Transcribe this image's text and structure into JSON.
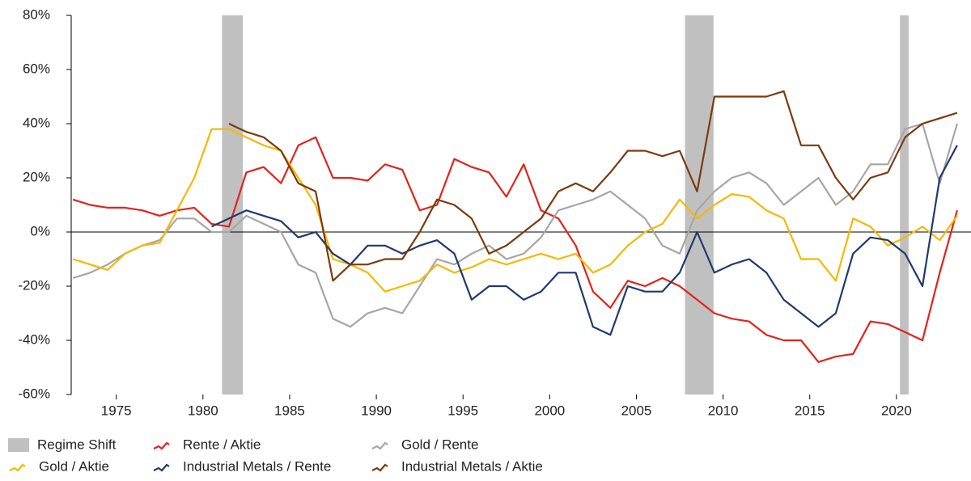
{
  "chart_data": {
    "type": "line",
    "x": [
      1972.5,
      1973.5,
      1974.5,
      1975.5,
      1976.5,
      1977.5,
      1978.5,
      1979.5,
      1980.5,
      1981.5,
      1982.5,
      1983.5,
      1984.5,
      1985.5,
      1986.5,
      1987.5,
      1988.5,
      1989.5,
      1990.5,
      1991.5,
      1992.5,
      1993.5,
      1994.5,
      1995.5,
      1996.5,
      1997.5,
      1998.5,
      1999.5,
      2000.5,
      2001.5,
      2002.5,
      2003.5,
      2004.5,
      2005.5,
      2006.5,
      2007.5,
      2008.5,
      2009.5,
      2010.5,
      2011.5,
      2012.5,
      2013.5,
      2014.5,
      2015.5,
      2016.5,
      2017.5,
      2018.5,
      2019.5,
      2020.5,
      2021.5,
      2022.5,
      2023.5
    ],
    "series": [
      {
        "name": "Rente / Aktie",
        "color": "#e2231a",
        "values": [
          12,
          10,
          9,
          9,
          8,
          6,
          8,
          9,
          3,
          2,
          22,
          24,
          18,
          32,
          35,
          20,
          20,
          19,
          25,
          23,
          8,
          10,
          27,
          24,
          22,
          13,
          25,
          8,
          5,
          -5,
          -22,
          -28,
          -18,
          -20,
          -17,
          -20,
          -25,
          -30,
          -32,
          -33,
          -38,
          -40,
          -40,
          -48,
          -46,
          -45,
          -33,
          -34,
          -37,
          -40,
          -15,
          8
        ]
      },
      {
        "name": "Gold / Rente",
        "color": "#a6a6a6",
        "values": [
          -17,
          -15,
          -12,
          -8,
          -5,
          -3,
          5,
          5,
          0,
          0,
          6,
          3,
          0,
          -12,
          -15,
          -32,
          -35,
          -30,
          -28,
          -30,
          -20,
          -10,
          -12,
          -8,
          -5,
          -10,
          -8,
          -2,
          8,
          10,
          12,
          15,
          10,
          5,
          -5,
          -8,
          8,
          15,
          20,
          22,
          18,
          10,
          15,
          20,
          10,
          15,
          25,
          25,
          38,
          40,
          18,
          40
        ]
      },
      {
        "name": "Gold / Aktie",
        "color": "#f5b800",
        "values": [
          -10,
          -12,
          -14,
          -8,
          -5,
          -4,
          8,
          20,
          38,
          38,
          35,
          32,
          30,
          20,
          10,
          -10,
          -12,
          -15,
          -22,
          -20,
          -18,
          -12,
          -15,
          -13,
          -10,
          -12,
          -10,
          -8,
          -10,
          -8,
          -15,
          -12,
          -5,
          0,
          3,
          12,
          5,
          10,
          14,
          13,
          8,
          5,
          -10,
          -10,
          -18,
          5,
          2,
          -5,
          -2,
          2,
          -3,
          6
        ]
      },
      {
        "name": "Industrial Metals / Rente",
        "color": "#1f3a6e",
        "values": [
          null,
          null,
          null,
          null,
          null,
          null,
          null,
          null,
          2,
          5,
          8,
          6,
          4,
          -2,
          0,
          -8,
          -12,
          -5,
          -5,
          -8,
          -5,
          -3,
          -8,
          -25,
          -20,
          -20,
          -25,
          -22,
          -15,
          -15,
          -35,
          -38,
          -20,
          -22,
          -22,
          -15,
          0,
          -15,
          -12,
          -10,
          -15,
          -25,
          -30,
          -35,
          -30,
          -8,
          -2,
          -3,
          -8,
          -20,
          20,
          32
        ]
      },
      {
        "name": "Industrial Metals / Aktie",
        "color": "#7b3a10",
        "values": [
          null,
          null,
          null,
          null,
          null,
          null,
          null,
          null,
          null,
          40,
          37,
          35,
          30,
          18,
          15,
          -18,
          -12,
          -12,
          -10,
          -10,
          0,
          12,
          10,
          5,
          -8,
          -5,
          0,
          5,
          15,
          18,
          15,
          22,
          30,
          30,
          28,
          30,
          15,
          50,
          50,
          50,
          50,
          52,
          32,
          32,
          20,
          12,
          20,
          22,
          35,
          40,
          42,
          44
        ]
      }
    ],
    "regime_name": "Regime Shift",
    "regime_color": "#c0c0c0",
    "regimes": [
      [
        1981.1,
        1982.3
      ],
      [
        2007.8,
        2009.45
      ],
      [
        2020.2,
        2020.7
      ]
    ],
    "xlim": [
      1972.4,
      2024.3
    ],
    "xticks": [
      1975,
      1980,
      1985,
      1990,
      1995,
      2000,
      2005,
      2010,
      2015,
      2020
    ],
    "ylim": [
      -60,
      80
    ],
    "yticks": [
      {
        "value": -60,
        "label": "-60%"
      },
      {
        "value": -40,
        "label": "-40%"
      },
      {
        "value": -20,
        "label": "-20%"
      },
      {
        "value": 0,
        "label": "0%"
      },
      {
        "value": 20,
        "label": "20%"
      },
      {
        "value": 40,
        "label": "40%"
      },
      {
        "value": 60,
        "label": "60%"
      },
      {
        "value": 80,
        "label": "80%"
      }
    ]
  }
}
